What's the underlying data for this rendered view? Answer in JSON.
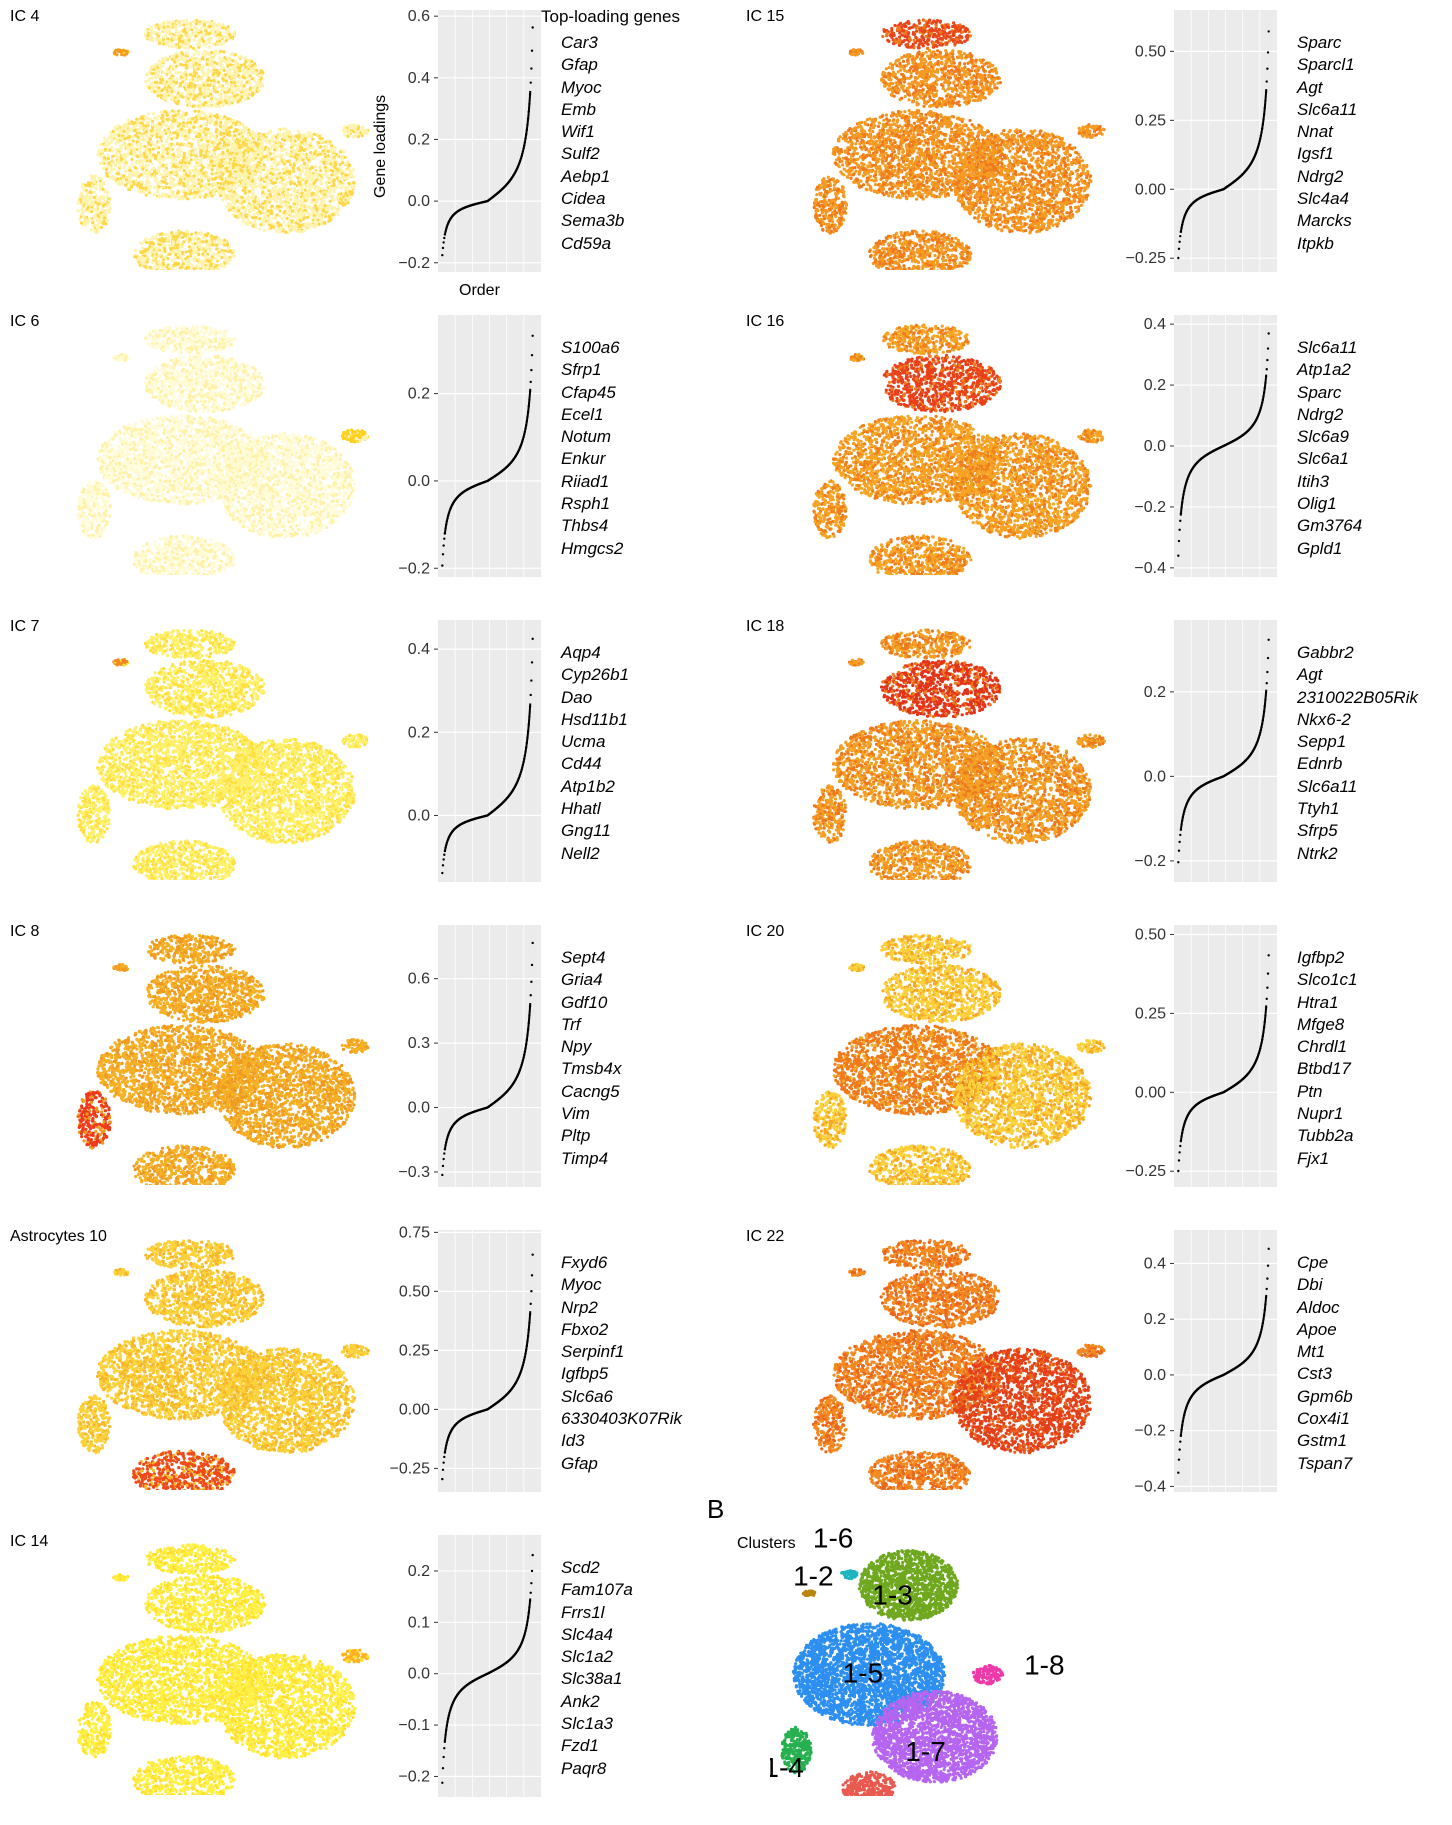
{
  "top_loading_title": "Top-loading genes",
  "y_axis_title": "Gene loadings",
  "x_axis_title": "Order",
  "panel_b_letter": "B",
  "clusters_label": "Clusters",
  "panels": [
    {
      "label": "IC 4",
      "col": 0,
      "row": 0,
      "ticks": [
        "0.6",
        "0.4",
        "0.2",
        "0.0",
        "−0.2"
      ],
      "tick_vals": [
        0.6,
        0.4,
        0.2,
        0.0,
        -0.2
      ],
      "ylim": [
        -0.23,
        0.62
      ],
      "min": -0.19,
      "max": 0.61,
      "genes": [
        "Car3",
        "Gfap",
        "Myoc",
        "Emb",
        "Wif1",
        "Sulf2",
        "Aebp1",
        "Cidea",
        "Sema3b",
        "Cd59a"
      ],
      "tsne": {
        "base": "#fff3b0",
        "hot": "#ffd84a",
        "hotspot": "#f59d20",
        "hotspot_where": "1-2"
      }
    },
    {
      "label": "IC 6",
      "col": 0,
      "row": 1,
      "ticks": [
        "0.2",
        "0.0",
        "−0.2"
      ],
      "tick_vals": [
        0.2,
        0.0,
        -0.2
      ],
      "ylim": [
        -0.22,
        0.38
      ],
      "min": -0.21,
      "max": 0.36,
      "genes": [
        "S100a6",
        "Sfrp1",
        "Cfap45",
        "Ecel1",
        "Notum",
        "Enkur",
        "Riiad1",
        "Rsph1",
        "Thbs4",
        "Hmgcs2"
      ],
      "tsne": {
        "base": "#fffbd6",
        "hot": "#fff2a8",
        "hotspot": "#ffd020",
        "hotspot_where": "1-8"
      }
    },
    {
      "label": "IC 7",
      "col": 0,
      "row": 2,
      "ticks": [
        "0.4",
        "0.2",
        "0.0"
      ],
      "tick_vals": [
        0.4,
        0.2,
        0.0
      ],
      "ylim": [
        -0.16,
        0.47
      ],
      "min": -0.15,
      "max": 0.46,
      "genes": [
        "Aqp4",
        "Cyp26b1",
        "Dao",
        "Hsd11b1",
        "Ucma",
        "Cd44",
        "Atp1b2",
        "Hhatl",
        "Gng11",
        "Nell2"
      ],
      "tsne": {
        "base": "#fff06a",
        "hot": "#ffe040",
        "hotspot": "#f08a20",
        "hotspot_where": "1-2"
      }
    },
    {
      "label": "IC 8",
      "col": 0,
      "row": 3,
      "ticks": [
        "0.6",
        "0.3",
        "0.0",
        "−0.3"
      ],
      "tick_vals": [
        0.6,
        0.3,
        0.0,
        -0.3
      ],
      "ylim": [
        -0.37,
        0.85
      ],
      "min": -0.34,
      "max": 0.83,
      "genes": [
        "Sept4",
        "Gria4",
        "Gdf10",
        "Trf",
        "Npy",
        "Tmsb4x",
        "Cacng5",
        "Vim",
        "Pltp",
        "Timp4"
      ],
      "tsne": {
        "base": "#f6b025",
        "hot": "#ee9a20",
        "hotspot": "#ee3a1a",
        "hotspot_where": "1-4"
      }
    },
    {
      "label": "Astrocytes 10",
      "col": 0,
      "row": 4,
      "ticks": [
        "0.75",
        "0.50",
        "0.25",
        "0.00",
        "−0.25"
      ],
      "tick_vals": [
        0.75,
        0.5,
        0.25,
        0.0,
        -0.25
      ],
      "ylim": [
        -0.35,
        0.76
      ],
      "min": -0.32,
      "max": 0.71,
      "genes": [
        "Fxyd6",
        "Myoc",
        "Nrp2",
        "Fbxo2",
        "Serpinf1",
        "Igfbp5",
        "Slc6a6",
        "6330403K07Rik",
        "Id3",
        "Gfap"
      ],
      "tsne": {
        "base": "#fcd23a",
        "hot": "#f6b82a",
        "hotspot": "#ee4a1a",
        "hotspot_where": "1-1"
      }
    },
    {
      "label": "IC 14",
      "col": 0,
      "row": 5,
      "ticks": [
        "0.2",
        "0.1",
        "0.0",
        "−0.1",
        "−0.2"
      ],
      "tick_vals": [
        0.2,
        0.1,
        0.0,
        -0.1,
        -0.2
      ],
      "ylim": [
        -0.24,
        0.27
      ],
      "min": -0.23,
      "max": 0.25,
      "genes": [
        "Scd2",
        "Fam107a",
        "Frrs1l",
        "Slc4a4",
        "Slc1a2",
        "Slc38a1",
        "Ank2",
        "Slc1a3",
        "Fzd1",
        "Paqr8"
      ],
      "tsne": {
        "base": "#fff045",
        "hot": "#ffe030",
        "hotspot": "#ffb020",
        "hotspot_where": "1-8"
      }
    },
    {
      "label": "IC 15",
      "col": 1,
      "row": 0,
      "ticks": [
        "0.50",
        "0.25",
        "0.00",
        "−0.25"
      ],
      "tick_vals": [
        0.5,
        0.25,
        0.0,
        -0.25
      ],
      "ylim": [
        -0.3,
        0.65
      ],
      "min": -0.27,
      "max": 0.62,
      "genes": [
        "Sparc",
        "Sparcl1",
        "Agt",
        "Slc6a11",
        "Nnat",
        "Igsf1",
        "Ndrg2",
        "Slc4a4",
        "Marcks",
        "Itpkb"
      ],
      "tsne": {
        "base": "#f59a22",
        "hot": "#ef7a1c",
        "hotspot": "#e8461a",
        "hotspot_where": "1-6"
      }
    },
    {
      "label": "IC 16",
      "col": 1,
      "row": 1,
      "ticks": [
        "0.4",
        "0.2",
        "0.0",
        "−0.2",
        "−0.4"
      ],
      "tick_vals": [
        0.4,
        0.2,
        0.0,
        -0.2,
        -0.4
      ],
      "ylim": [
        -0.43,
        0.43
      ],
      "min": -0.39,
      "max": 0.4,
      "genes": [
        "Slc6a11",
        "Atp1a2",
        "Sparc",
        "Ndrg2",
        "Slc6a9",
        "Slc6a1",
        "Itih3",
        "Olig1",
        "Gm3764",
        "Gpld1"
      ],
      "tsne": {
        "base": "#f6a424",
        "hot": "#ef7e1c",
        "hotspot": "#e8401a",
        "hotspot_where": "1-3"
      }
    },
    {
      "label": "IC 18",
      "col": 1,
      "row": 2,
      "ticks": [
        "0.2",
        "0.0",
        "−0.2"
      ],
      "tick_vals": [
        0.2,
        0.0,
        -0.2
      ],
      "ylim": [
        -0.25,
        0.37
      ],
      "min": -0.22,
      "max": 0.35,
      "genes": [
        "Gabbr2",
        "Agt",
        "2310022B05Rik",
        "Nkx6-2",
        "Sepp1",
        "Ednrb",
        "Slc6a11",
        "Ttyh1",
        "Sfrp5",
        "Ntrk2"
      ],
      "tsne": {
        "base": "#f3a024",
        "hot": "#ec7a1c",
        "hotspot": "#e2341a",
        "hotspot_where": "1-3"
      }
    },
    {
      "label": "IC 20",
      "col": 1,
      "row": 3,
      "ticks": [
        "0.50",
        "0.25",
        "0.00",
        "−0.25"
      ],
      "tick_vals": [
        0.5,
        0.25,
        0.0,
        -0.25
      ],
      "ylim": [
        -0.3,
        0.53
      ],
      "min": -0.27,
      "max": 0.47,
      "genes": [
        "Igfbp2",
        "Slco1c1",
        "Htra1",
        "Mfge8",
        "Chrdl1",
        "Btbd17",
        "Ptn",
        "Nupr1",
        "Tubb2a",
        "Fjx1"
      ],
      "tsne": {
        "base": "#fcd03a",
        "hot": "#f3a826",
        "hotspot": "#ee7a1c",
        "hotspot_where": "1-5"
      }
    },
    {
      "label": "IC 22",
      "col": 1,
      "row": 4,
      "ticks": [
        "0.4",
        "0.2",
        "0.0",
        "−0.2",
        "−0.4"
      ],
      "tick_vals": [
        0.4,
        0.2,
        0.0,
        -0.2,
        -0.4
      ],
      "ylim": [
        -0.42,
        0.52
      ],
      "min": -0.38,
      "max": 0.49,
      "genes": [
        "Cpe",
        "Dbi",
        "Aldoc",
        "Apoe",
        "Mt1",
        "Cst3",
        "Gpm6b",
        "Cox4i1",
        "Gstm1",
        "Tspan7"
      ],
      "tsne": {
        "base": "#f28a20",
        "hot": "#ea661c",
        "hotspot": "#e3401a",
        "hotspot_where": "1-7"
      }
    }
  ],
  "clusters": [
    {
      "label": "1-2",
      "color": "#b8860b"
    },
    {
      "label": "1-6",
      "color": "#1fb5c0"
    },
    {
      "label": "1-3",
      "color": "#6fa81f"
    },
    {
      "label": "1-5",
      "color": "#2d8ff0"
    },
    {
      "label": "1-8",
      "color": "#ee3aa8"
    },
    {
      "label": "1-7",
      "color": "#b565f0"
    },
    {
      "label": "1-4",
      "color": "#27b050"
    },
    {
      "label": "",
      "color": "#e85a50"
    }
  ]
}
